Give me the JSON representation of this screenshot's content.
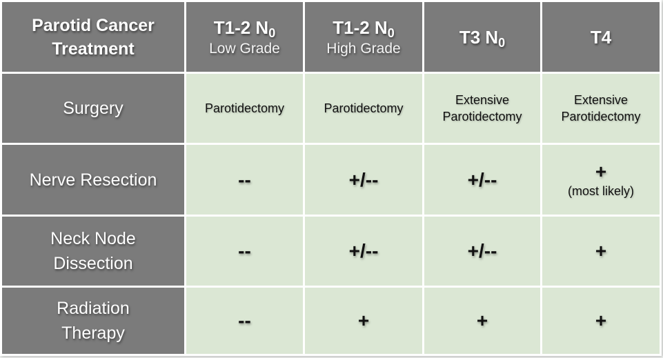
{
  "table": {
    "corner_line1": "Parotid Cancer",
    "corner_line2": "Treatment",
    "columns": [
      {
        "main": "T1-2  N",
        "sub_index": "0",
        "sub": "Low Grade"
      },
      {
        "main": "T1-2 N",
        "sub_index": "0",
        "sub": "High Grade"
      },
      {
        "main": "T3 N",
        "sub_index": "0",
        "sub": ""
      },
      {
        "main": "T4",
        "sub_index": "",
        "sub": ""
      }
    ],
    "rows": [
      {
        "label_line1": "Surgery",
        "label_line2": "",
        "cells": [
          {
            "line1": "Parotidectomy",
            "line2": ""
          },
          {
            "line1": "Parotidectomy",
            "line2": ""
          },
          {
            "line1": "Extensive",
            "line2": "Parotidectomy"
          },
          {
            "line1": "Extensive",
            "line2": "Parotidectomy"
          }
        ]
      },
      {
        "label_line1": "Nerve Resection",
        "label_line2": "",
        "cells": [
          {
            "symbol": "--",
            "note": ""
          },
          {
            "symbol": "+/--",
            "note": ""
          },
          {
            "symbol": "+/--",
            "note": ""
          },
          {
            "symbol": "+",
            "note": "(most likely)"
          }
        ]
      },
      {
        "label_line1": "Neck Node",
        "label_line2": "Dissection",
        "cells": [
          {
            "symbol": "--"
          },
          {
            "symbol": "+/--"
          },
          {
            "symbol": "+/--"
          },
          {
            "symbol": "+"
          }
        ]
      },
      {
        "label_line1": "Radiation",
        "label_line2": "Therapy",
        "cells": [
          {
            "symbol": "--"
          },
          {
            "symbol": "+"
          },
          {
            "symbol": "+"
          },
          {
            "symbol": "+"
          }
        ]
      }
    ]
  },
  "colors": {
    "header_bg": "#7b7b7b",
    "cell_bg": "#dbe7d4",
    "grid_line": "#ffffff"
  }
}
